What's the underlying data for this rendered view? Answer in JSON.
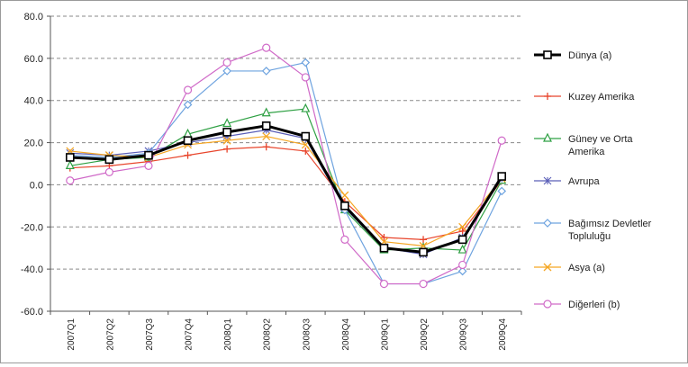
{
  "chart_data": {
    "type": "line",
    "title": "",
    "xlabel": "",
    "ylabel": "",
    "ylim": [
      -60,
      80
    ],
    "yticks": [
      "80.0",
      "60.0",
      "40.0",
      "20.0",
      "0.0",
      "-20.0",
      "-40.0",
      "-60.0"
    ],
    "ytick_values": [
      80,
      60,
      40,
      20,
      0,
      -20,
      -40,
      -60
    ],
    "grid": "horizontal dashed",
    "legend_placement": "right",
    "categories": [
      "2007Q1",
      "2007Q2",
      "2007Q3",
      "2007Q4",
      "2008Q1",
      "2008Q2",
      "2008Q3",
      "2008Q4",
      "2009Q1",
      "2009Q2",
      "2009Q3",
      "2009Q4"
    ],
    "series": [
      {
        "name": "Dünya (a)",
        "color": "#000000",
        "marker": "square",
        "width": 3,
        "values": [
          13,
          12,
          14,
          21,
          25,
          28,
          23,
          -10,
          -30,
          -32,
          -26,
          4
        ]
      },
      {
        "name": "Kuzey Amerika",
        "color": "#e8452c",
        "marker": "plus",
        "width": 1.2,
        "values": [
          8,
          9,
          11,
          14,
          17,
          18,
          16,
          -8,
          -25,
          -26,
          -22,
          2
        ]
      },
      {
        "name": "Güney ve Orta Amerika",
        "color": "#2ea043",
        "marker": "triangle",
        "width": 1.2,
        "values": [
          9,
          12,
          13,
          24,
          29,
          34,
          36,
          -12,
          -31,
          -30,
          -31,
          2
        ]
      },
      {
        "name": "Avrupa",
        "color": "#5b5fb8",
        "marker": "asterisk",
        "width": 1.2,
        "values": [
          15,
          14,
          16,
          20,
          23,
          26,
          22,
          -11,
          -30,
          -33,
          -25,
          3
        ]
      },
      {
        "name": "Bağımsız Devletler Topluluğu",
        "color": "#6ea3df",
        "marker": "diamond",
        "width": 1.2,
        "values": [
          14,
          13,
          15,
          38,
          54,
          54,
          58,
          -12,
          -47,
          -47,
          -41,
          -3
        ]
      },
      {
        "name": "Asya  (a)",
        "color": "#f5a623",
        "marker": "x",
        "width": 1.2,
        "values": [
          16,
          14,
          13,
          19,
          21,
          23,
          19,
          -5,
          -27,
          -29,
          -20,
          3
        ]
      },
      {
        "name": "Diğerleri (b)",
        "color": "#d06ac8",
        "marker": "circle",
        "width": 1.2,
        "values": [
          2,
          6,
          9,
          45,
          58,
          65,
          51,
          -26,
          -47,
          -47,
          -38,
          21
        ]
      }
    ]
  }
}
